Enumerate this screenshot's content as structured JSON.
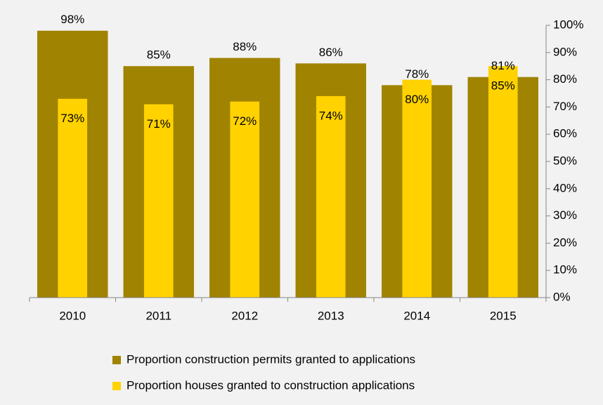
{
  "chart_data": {
    "type": "bar",
    "categories": [
      "2010",
      "2011",
      "2012",
      "2013",
      "2014",
      "2015"
    ],
    "series": [
      {
        "name": "Proportion construction permits granted to applications",
        "color": "#a08300",
        "values": [
          98,
          85,
          88,
          86,
          78,
          81
        ],
        "value_labels": [
          "98%",
          "85%",
          "88%",
          "86%",
          "78%",
          "81%"
        ]
      },
      {
        "name": "Proportion houses granted to construction applications",
        "color": "#ffd200",
        "values": [
          73,
          71,
          72,
          74,
          80,
          85
        ],
        "value_labels": [
          "73%",
          "71%",
          "72%",
          "74%",
          "80%",
          "85%"
        ]
      }
    ],
    "ylim": [
      0,
      100
    ],
    "yticks": [
      {
        "value": 0,
        "label": "0%"
      },
      {
        "value": 10,
        "label": "10%"
      },
      {
        "value": 20,
        "label": "20%"
      },
      {
        "value": 30,
        "label": "30%"
      },
      {
        "value": 40,
        "label": "40%"
      },
      {
        "value": 50,
        "label": "50%"
      },
      {
        "value": 60,
        "label": "60%"
      },
      {
        "value": 70,
        "label": "70%"
      },
      {
        "value": 80,
        "label": "80%"
      },
      {
        "value": 90,
        "label": "90%"
      },
      {
        "value": 100,
        "label": "100%"
      }
    ],
    "y_axis_side": "right",
    "legend": "bottom"
  }
}
